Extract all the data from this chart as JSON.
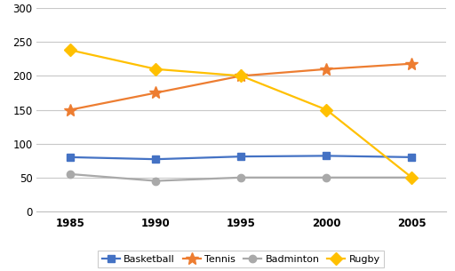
{
  "years": [
    1985,
    1990,
    1995,
    2000,
    2005
  ],
  "basketball": [
    80,
    77,
    81,
    82,
    80
  ],
  "tennis": [
    150,
    175,
    200,
    210,
    218
  ],
  "badminton": [
    55,
    45,
    50,
    50,
    50
  ],
  "rugby": [
    238,
    210,
    200,
    150,
    50
  ],
  "basketball_color": "#4472C4",
  "tennis_color": "#ED7D31",
  "badminton_color": "#A9A9A9",
  "rugby_color": "#FFC000",
  "basketball_marker": "s",
  "tennis_marker": "*",
  "badminton_marker": "o",
  "rugby_marker": "D",
  "ylim": [
    0,
    300
  ],
  "yticks": [
    0,
    50,
    100,
    150,
    200,
    250,
    300
  ],
  "legend_labels": [
    "Basketball",
    "Tennis",
    "Badminton",
    "Rugby"
  ],
  "background_color": "#ffffff",
  "grid_color": "#c8c8c8",
  "linewidth": 1.6,
  "markersize": 6,
  "tennis_markersize": 10,
  "rugby_markersize": 7,
  "figure_border_color": "#c0c0c0"
}
